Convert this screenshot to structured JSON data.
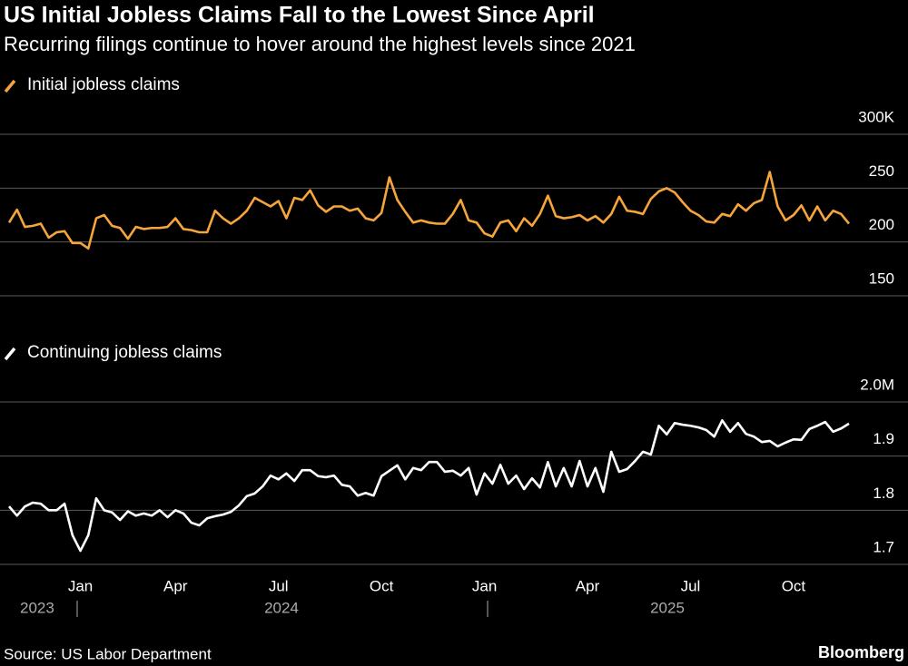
{
  "header": {
    "title": "US Initial Jobless Claims Fall to the Lowest Since April",
    "subtitle": "Recurring filings continue to hover around the highest levels since 2021"
  },
  "chart_data": [
    {
      "type": "line",
      "series": [
        {
          "name": "Initial jobless claims",
          "color": "#f5a53c",
          "values": [
            218,
            230,
            214,
            215,
            217,
            204,
            209,
            210,
            199,
            199,
            194,
            222,
            225,
            215,
            213,
            203,
            214,
            212,
            213,
            213,
            214,
            222,
            212,
            211,
            209,
            209,
            229,
            222,
            217,
            222,
            229,
            241,
            237,
            233,
            238,
            222,
            241,
            239,
            248,
            234,
            228,
            233,
            233,
            229,
            231,
            222,
            220,
            227,
            260,
            239,
            228,
            218,
            220,
            218,
            217,
            217,
            226,
            239,
            220,
            218,
            208,
            205,
            218,
            220,
            210,
            222,
            215,
            226,
            243,
            224,
            222,
            223,
            225,
            220,
            224,
            218,
            226,
            242,
            229,
            228,
            226,
            240,
            247,
            250,
            246,
            237,
            229,
            225,
            219,
            218,
            226,
            224,
            235,
            229,
            236,
            239,
            265,
            233,
            220,
            225,
            234,
            220,
            233,
            220,
            229,
            226,
            217
          ]
        }
      ],
      "ylim": [
        150,
        300
      ],
      "yticks": [
        150,
        200,
        250,
        {
          "value": 300,
          "label": "300K"
        }
      ],
      "grid": true
    },
    {
      "type": "line",
      "series": [
        {
          "name": "Continuing jobless claims",
          "color": "#ffffff",
          "values": [
            1.807,
            1.79,
            1.807,
            1.814,
            1.812,
            1.8,
            1.8,
            1.812,
            1.754,
            1.725,
            1.754,
            1.822,
            1.8,
            1.796,
            1.782,
            1.798,
            1.79,
            1.794,
            1.79,
            1.8,
            1.787,
            1.8,
            1.794,
            1.777,
            1.772,
            1.785,
            1.789,
            1.792,
            1.797,
            1.809,
            1.826,
            1.831,
            1.844,
            1.864,
            1.857,
            1.868,
            1.854,
            1.874,
            1.874,
            1.863,
            1.861,
            1.864,
            1.847,
            1.844,
            1.827,
            1.832,
            1.827,
            1.863,
            1.873,
            1.883,
            1.857,
            1.878,
            1.874,
            1.889,
            1.889,
            1.871,
            1.873,
            1.864,
            1.878,
            1.829,
            1.868,
            1.849,
            1.884,
            1.849,
            1.864,
            1.839,
            1.859,
            1.842,
            1.889,
            1.844,
            1.878,
            1.844,
            1.891,
            1.844,
            1.878,
            1.834,
            1.908,
            1.871,
            1.876,
            1.891,
            1.908,
            1.903,
            1.956,
            1.94,
            1.961,
            1.958,
            1.956,
            1.953,
            1.948,
            1.936,
            1.966,
            1.945,
            1.961,
            1.941,
            1.936,
            1.926,
            1.928,
            1.918,
            1.925,
            1.931,
            1.93,
            1.95,
            1.956,
            1.963,
            1.945,
            1.951,
            1.96
          ]
        }
      ],
      "categories": [
        null,
        null,
        null,
        null,
        null,
        null,
        null,
        null,
        null,
        "Jan",
        null,
        null,
        null,
        null,
        null,
        null,
        null,
        null,
        null,
        null,
        null,
        "Apr",
        null,
        null,
        null,
        null,
        null,
        null,
        null,
        null,
        null,
        null,
        null,
        null,
        "Jul",
        null,
        null,
        null,
        null,
        null,
        null,
        null,
        null,
        null,
        null,
        null,
        null,
        "Oct",
        null,
        null,
        null,
        null,
        null,
        null,
        null,
        null,
        null,
        null,
        null,
        null,
        "Jan",
        null,
        null,
        null,
        null,
        null,
        null,
        null,
        null,
        null,
        null,
        null,
        null,
        "Apr",
        null,
        null,
        null,
        null,
        null,
        null,
        null,
        null,
        null,
        null,
        null,
        null,
        "Jul",
        null,
        null,
        null,
        null,
        null,
        null,
        null,
        null,
        null,
        null,
        null,
        null,
        "Oct",
        null,
        null,
        null,
        null,
        null,
        null,
        null
      ],
      "year_labels": [
        "2023",
        "2024",
        "2025"
      ],
      "ylim": [
        1.7,
        2.0
      ],
      "yticks": [
        1.7,
        1.8,
        1.9,
        {
          "value": 2.0,
          "label": "2.0M"
        }
      ],
      "grid": true
    }
  ],
  "footer": {
    "source": "Source: US Labor Department",
    "brand": "Bloomberg"
  }
}
